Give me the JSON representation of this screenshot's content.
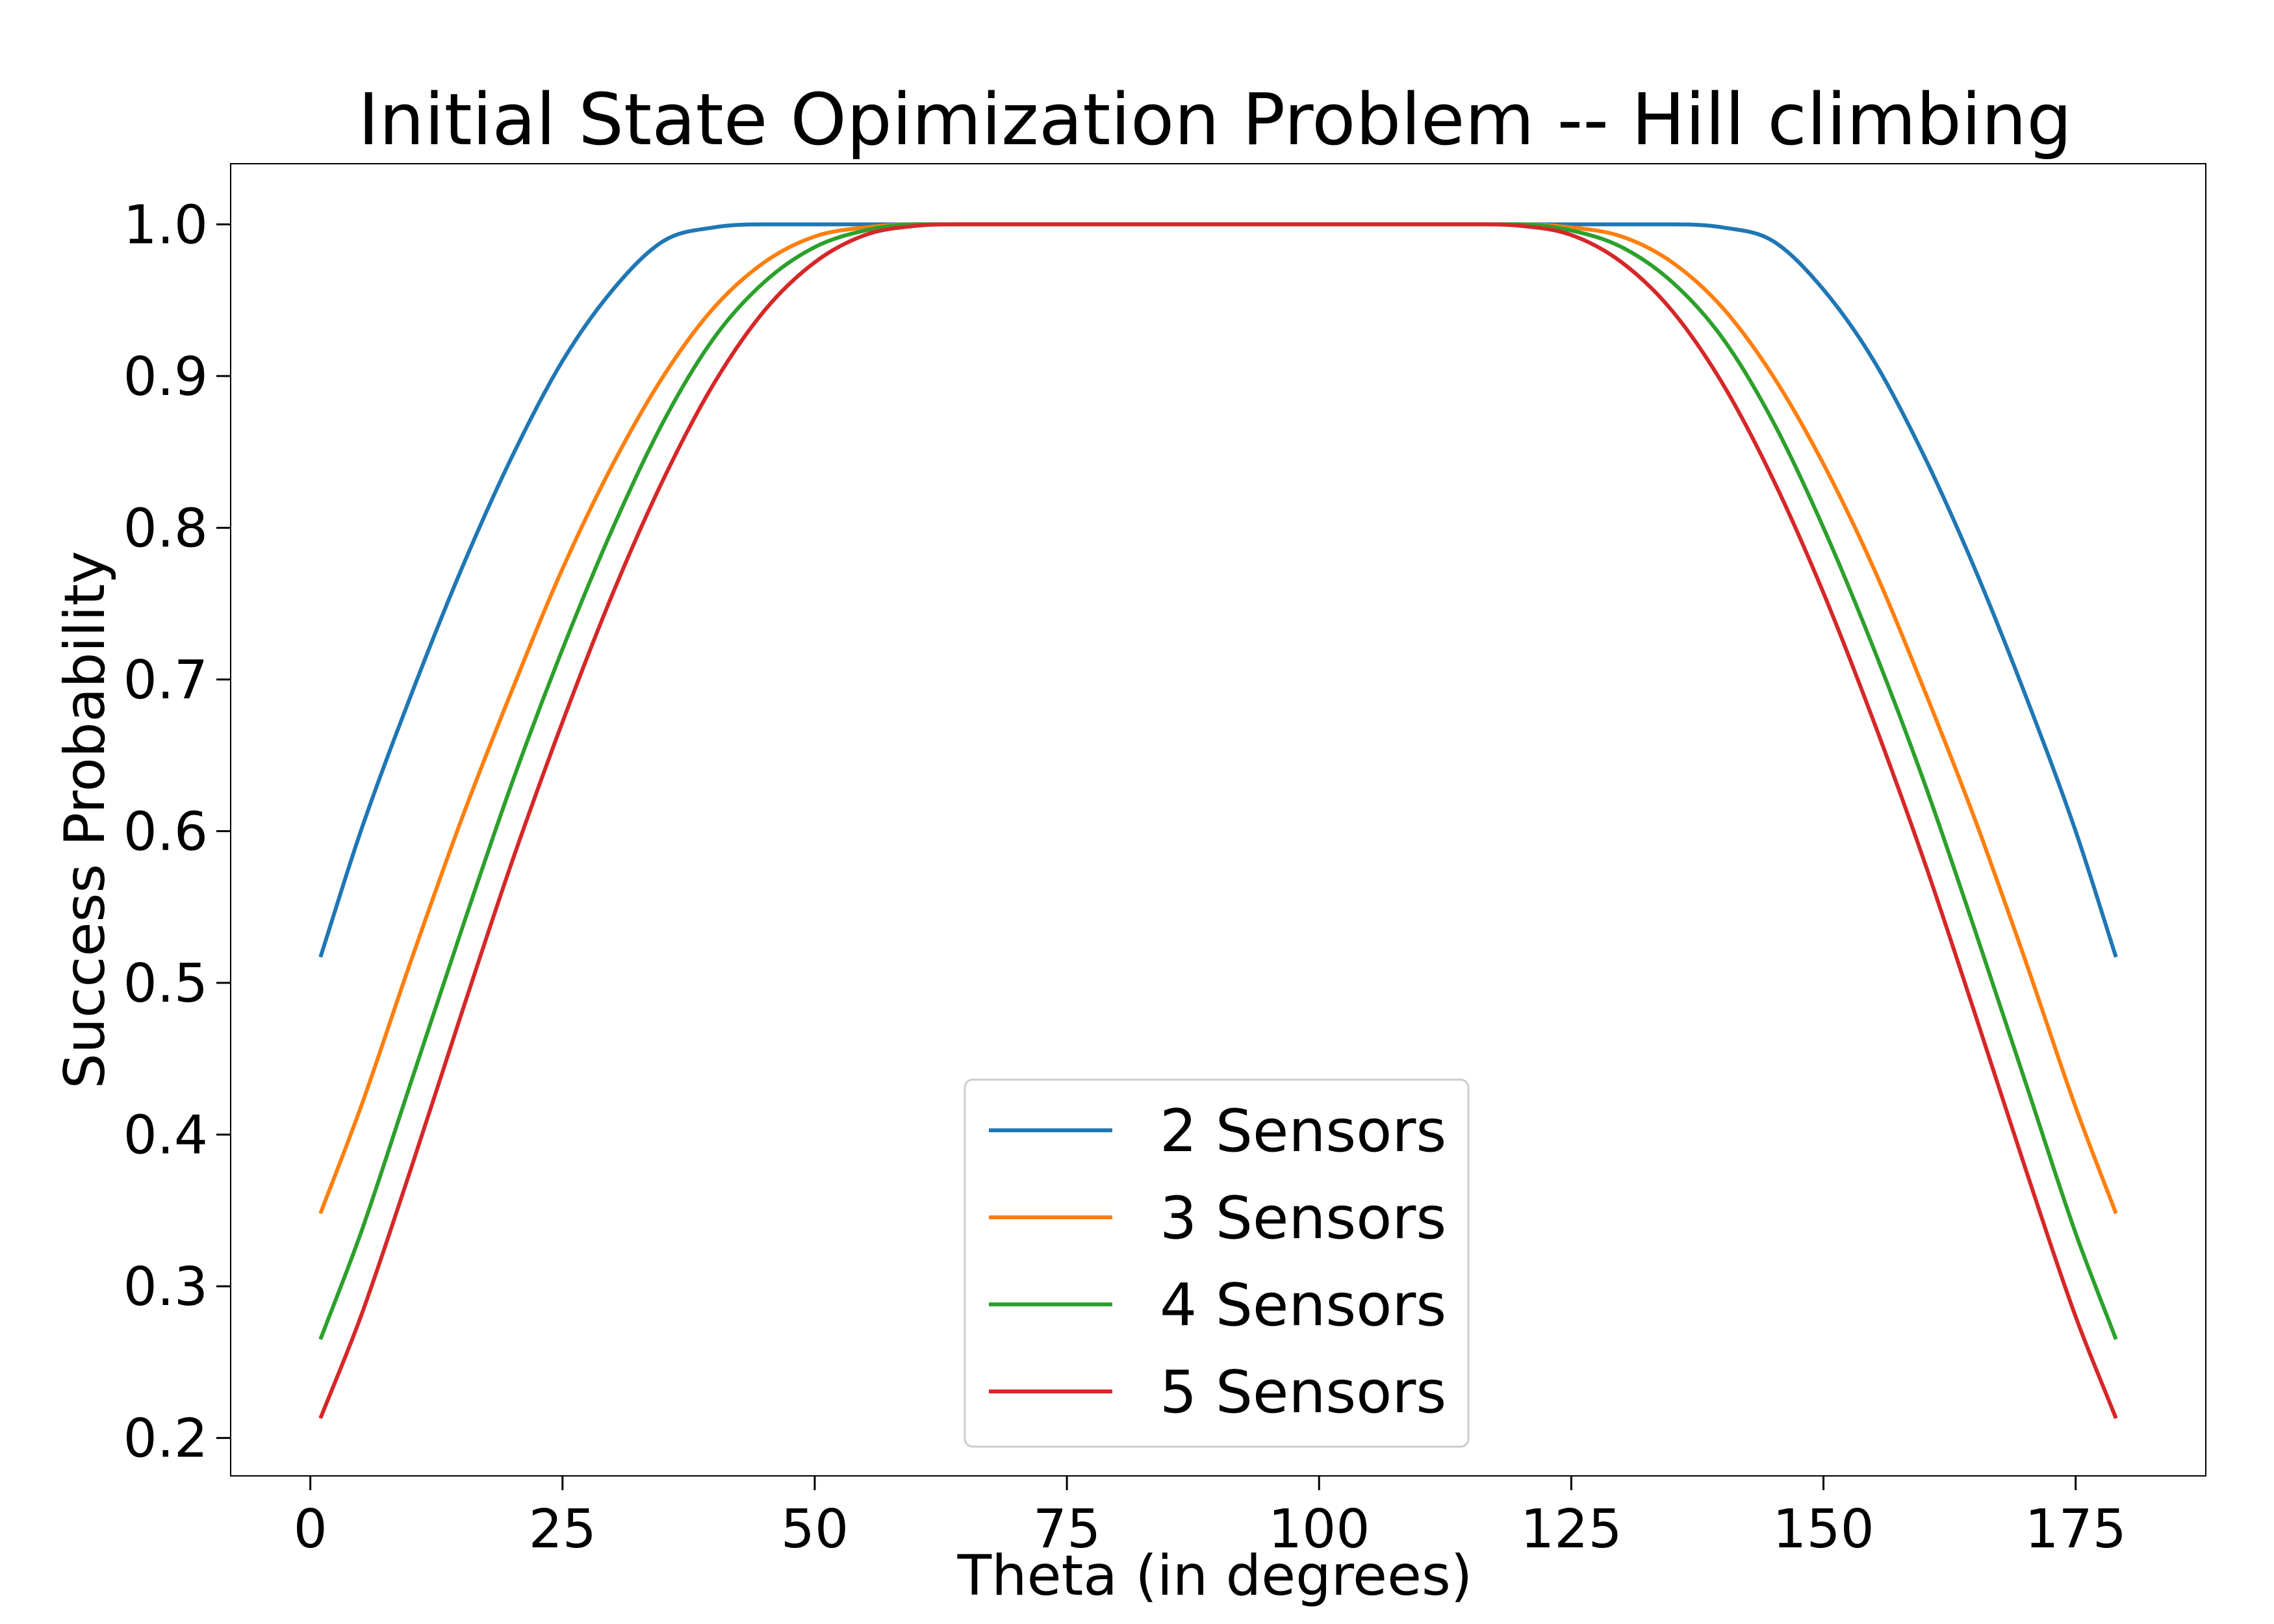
{
  "chart_data": {
    "type": "line",
    "title": "Initial State Opimization Problem -- Hill climbing",
    "xlabel": "Theta (in degrees)",
    "ylabel": "Success Probability",
    "xlim": [
      -7.9,
      187.9
    ],
    "ylim": [
      0.175,
      1.04
    ],
    "xticks": [
      "0",
      "25",
      "50",
      "75",
      "100",
      "125",
      "150",
      "175"
    ],
    "yticks": [
      "0.2",
      "0.3",
      "0.4",
      "0.5",
      "0.6",
      "0.7",
      "0.8",
      "0.9",
      "1.0"
    ],
    "grid": false,
    "legend_position": "lower-center",
    "series": [
      {
        "name": "2 Sensors",
        "color": "#1f77b4",
        "x": [
          1,
          5,
          10,
          15,
          20,
          25,
          30,
          35,
          40,
          45,
          135,
          140,
          145,
          150,
          155,
          160,
          165,
          170,
          175,
          179
        ],
        "y": [
          0.517,
          0.6,
          0.69,
          0.773,
          0.847,
          0.91,
          0.957,
          0.989,
          0.998,
          1.0,
          1.0,
          0.998,
          0.989,
          0.957,
          0.91,
          0.847,
          0.773,
          0.69,
          0.6,
          0.517
        ]
      },
      {
        "name": "3 Sensors",
        "color": "#ff7f0e",
        "x": [
          1,
          5,
          10,
          15,
          20,
          25,
          30,
          35,
          40,
          45,
          50,
          55,
          60,
          65,
          115,
          120,
          125,
          130,
          135,
          140,
          145,
          150,
          155,
          160,
          165,
          170,
          175,
          179
        ],
        "y": [
          0.348,
          0.418,
          0.515,
          0.608,
          0.693,
          0.773,
          0.842,
          0.9,
          0.945,
          0.975,
          0.992,
          0.998,
          1.0,
          1.0,
          1.0,
          1.0,
          0.998,
          0.992,
          0.975,
          0.945,
          0.9,
          0.842,
          0.773,
          0.693,
          0.608,
          0.515,
          0.418,
          0.348
        ]
      },
      {
        "name": "4 Sensors",
        "color": "#2ca02c",
        "x": [
          1,
          5,
          10,
          15,
          20,
          25,
          30,
          35,
          40,
          45,
          50,
          55,
          60,
          65,
          115,
          120,
          125,
          130,
          135,
          140,
          145,
          150,
          155,
          160,
          165,
          170,
          175,
          179
        ],
        "y": [
          0.265,
          0.335,
          0.435,
          0.535,
          0.632,
          0.72,
          0.8,
          0.87,
          0.925,
          0.962,
          0.985,
          0.996,
          1.0,
          1.0,
          1.0,
          1.0,
          0.996,
          0.985,
          0.962,
          0.925,
          0.87,
          0.8,
          0.72,
          0.632,
          0.535,
          0.435,
          0.335,
          0.265
        ]
      },
      {
        "name": "5 Sensors",
        "color": "#d62728",
        "x": [
          1,
          5,
          10,
          15,
          20,
          25,
          30,
          35,
          40,
          45,
          50,
          55,
          60,
          65,
          115,
          120,
          125,
          130,
          135,
          140,
          145,
          150,
          155,
          160,
          165,
          170,
          175,
          179
        ],
        "y": [
          0.213,
          0.28,
          0.378,
          0.48,
          0.58,
          0.672,
          0.757,
          0.832,
          0.895,
          0.943,
          0.975,
          0.993,
          0.999,
          1.0,
          1.0,
          0.999,
          0.993,
          0.975,
          0.943,
          0.895,
          0.832,
          0.757,
          0.672,
          0.58,
          0.48,
          0.378,
          0.28,
          0.213
        ]
      }
    ]
  }
}
